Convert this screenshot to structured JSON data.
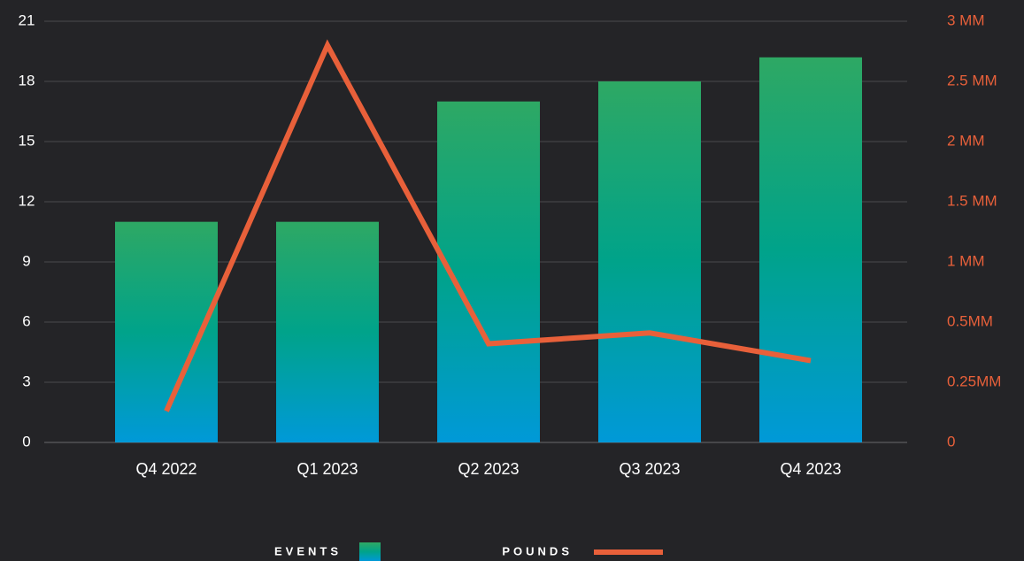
{
  "chart_data": {
    "type": "bar",
    "categories": [
      "Q4 2022",
      "Q1 2023",
      "Q2 2023",
      "Q3 2023",
      "Q4 2023"
    ],
    "series": [
      {
        "name": "EVENTS",
        "type": "bar",
        "gradient": [
          "#2ea864",
          "#00a38a",
          "#0099d8"
        ],
        "values": [
          11,
          11,
          17,
          18,
          19.2
        ]
      },
      {
        "name": "POUNDS",
        "type": "line",
        "axis": "y2",
        "color": "#e8603a",
        "values": [
          130000,
          2800000,
          410000,
          455000,
          340000
        ]
      }
    ],
    "ylim": [
      0,
      21
    ],
    "yticks": [
      0,
      3,
      6,
      9,
      12,
      15,
      18,
      21
    ],
    "y2lim": [
      0,
      3000000
    ],
    "y2ticks": [
      0,
      {
        "value": 250000,
        "label": "0.25MM"
      },
      {
        "value": 500000,
        "label": "0.5MM"
      },
      {
        "value": 1000000,
        "label": "1 MM"
      },
      {
        "value": 1500000,
        "label": "1.5 MM"
      },
      {
        "value": 2000000,
        "label": "2 MM"
      },
      {
        "value": 2500000,
        "label": "2.5 MM"
      },
      {
        "value": 3000000,
        "label": "3 MM"
      }
    ],
    "grid": true
  }
}
